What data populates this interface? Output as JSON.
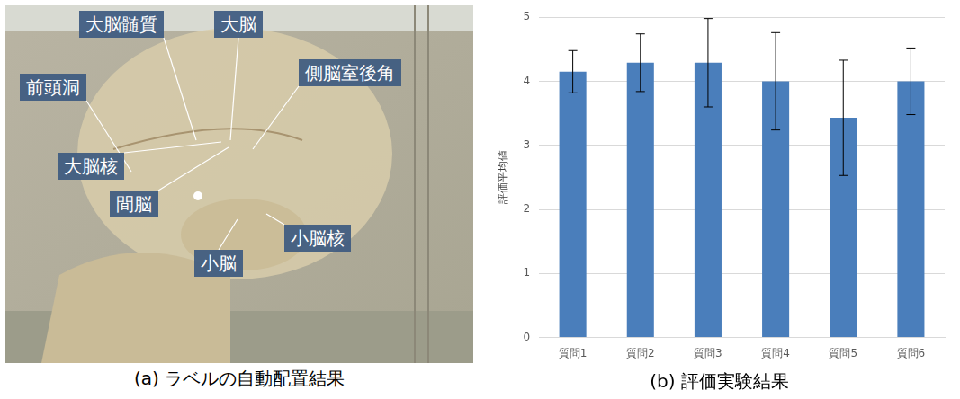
{
  "chart_data": {
    "type": "bar",
    "title": "(b) 評価実験結果",
    "y_label": "評価平均値",
    "categories": [
      "質問1",
      "質問2",
      "質問3",
      "質問4",
      "質問5",
      "質問6"
    ],
    "values": [
      4.15,
      4.29,
      4.29,
      4.0,
      3.43,
      4.0
    ],
    "errors": [
      0.33,
      0.45,
      0.69,
      0.76,
      0.9,
      0.52
    ],
    "color": "#4a7ebb",
    "ylim": [
      0,
      5
    ],
    "yticks": [
      0,
      1,
      2,
      3,
      4,
      5
    ],
    "grid": true
  },
  "image_panel": {
    "caption": "(a) ラベルの自動配置結果",
    "labels": [
      "大脳髄質",
      "大脳",
      "前頭洞",
      "側脳室後角",
      "大脳核",
      "間脳",
      "小脳核",
      "小脳"
    ]
  }
}
